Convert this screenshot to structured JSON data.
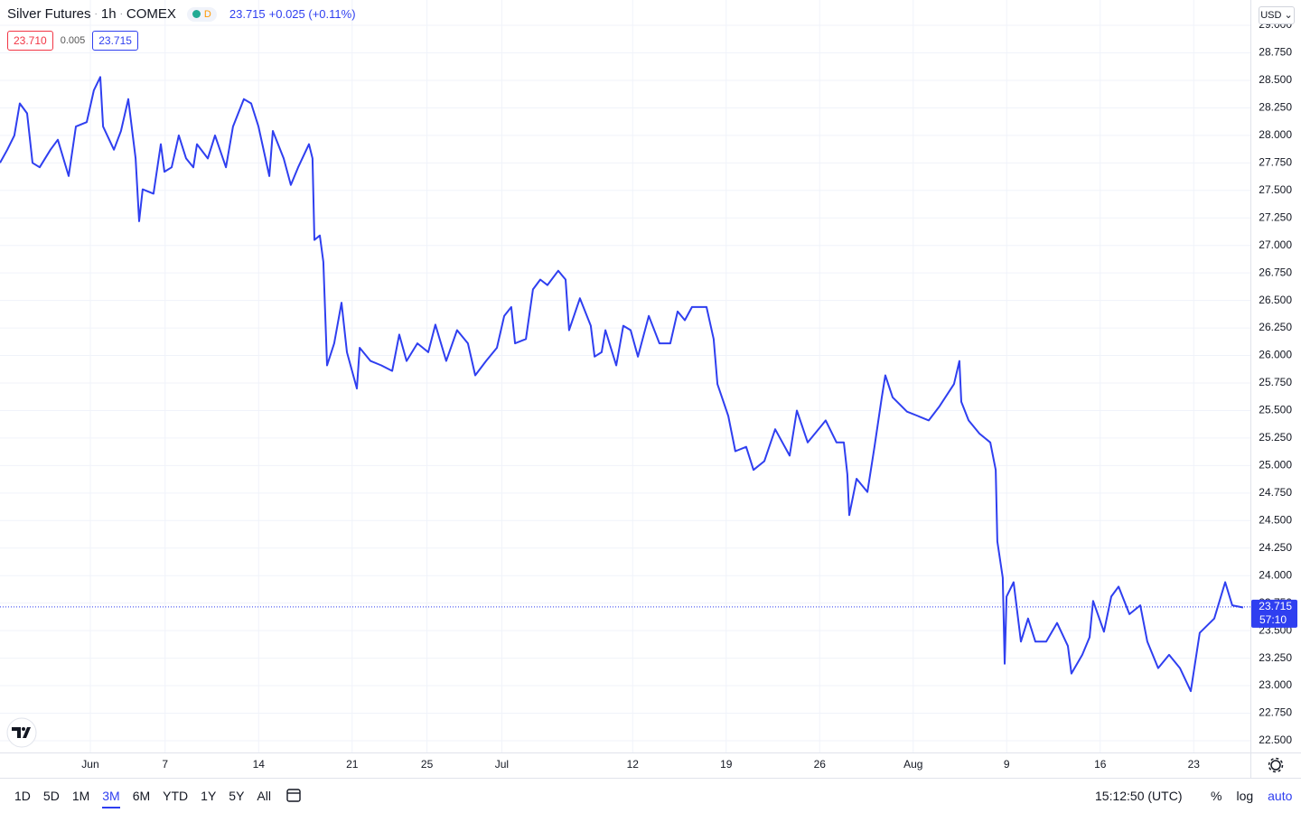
{
  "header": {
    "interval": "1h",
    "exchange": "COMEX",
    "badge": "D",
    "change": "+0.025 (+0.11%)",
    "sell": "23.710",
    "spread": "0.005",
    "buy": "23.715",
    "currency": "USD"
  },
  "chart_data": {
    "type": "line",
    "x": [
      -4.83,
      -4.44,
      -4.06,
      -3.77,
      -3.38,
      -3.09,
      -2.71,
      -2.13,
      -1.74,
      -1.16,
      -0.77,
      -0.19,
      0.19,
      0.53,
      0.68,
      1.26,
      1.64,
      2.03,
      2.42,
      2.61,
      2.8,
      3.38,
      3.77,
      3.96,
      4.35,
      4.73,
      5.12,
      5.51,
      5.7,
      6.28,
      6.67,
      7.25,
      7.63,
      8.21,
      8.6,
      8.99,
      9.57,
      9.76,
      10.34,
      10.72,
      11.11,
      11.69,
      11.88,
      11.98,
      12.27,
      12.46,
      12.66,
      13.04,
      13.43,
      13.72,
      14.25,
      14.4,
      14.98,
      15.56,
      16.14,
      16.52,
      16.91,
      17.49,
      18.07,
      18.45,
      19.03,
      19.61,
      20.19,
      20.58,
      21.16,
      21.74,
      22.13,
      22.51,
      22.71,
      23.29,
      23.67,
      24.06,
      24.44,
      25.02,
      25.41,
      25.6,
      26.18,
      26.76,
      26.96,
      27.34,
      27.54,
      28.12,
      28.5,
      28.89,
      29.28,
      29.86,
      30.43,
      31.01,
      31.4,
      31.79,
      32.17,
      32.95,
      33.33,
      33.53,
      34.11,
      34.49,
      35.07,
      35.46,
      36.04,
      36.62,
      37.39,
      37.78,
      38.36,
      39.13,
      39.32,
      39.9,
      40.29,
      40.48,
      40.58,
      40.97,
      41.55,
      41.93,
      42.32,
      42.51,
      42.9,
      43.67,
      44.25,
      44.83,
      45.41,
      46.18,
      46.47,
      46.57,
      46.96,
      47.54,
      48.12,
      48.41,
      48.5,
      48.79,
      48.89,
      48.99,
      49.37,
      49.76,
      50.14,
      50.53,
      51.11,
      51.69,
      52.27,
      52.46,
      53.04,
      53.43,
      53.62,
      54.2,
      54.59,
      54.98,
      55.56,
      56.14,
      56.52,
      57.1,
      57.68,
      58.26,
      58.84,
      59.32,
      60.1,
      60.68,
      61.06,
      61.64
    ],
    "series": [
      {
        "name": "Silver Futures",
        "color": "#2f3ff0",
        "values": [
          27.75,
          27.87,
          28.0,
          28.29,
          28.2,
          27.75,
          27.71,
          27.87,
          27.96,
          27.63,
          28.08,
          28.12,
          28.41,
          28.53,
          28.08,
          27.87,
          28.04,
          28.33,
          27.79,
          27.22,
          27.51,
          27.47,
          27.92,
          27.67,
          27.71,
          28.0,
          27.79,
          27.71,
          27.92,
          27.79,
          28.0,
          27.71,
          28.08,
          28.33,
          28.29,
          28.08,
          27.63,
          28.04,
          27.79,
          27.55,
          27.71,
          27.92,
          27.79,
          27.05,
          27.09,
          26.85,
          25.91,
          26.11,
          26.48,
          26.03,
          25.7,
          26.07,
          25.95,
          25.91,
          25.86,
          26.19,
          25.95,
          26.11,
          26.03,
          26.28,
          25.95,
          26.23,
          26.11,
          25.82,
          25.95,
          26.07,
          26.36,
          26.44,
          26.11,
          26.15,
          26.6,
          26.69,
          26.64,
          26.77,
          26.69,
          26.23,
          26.52,
          26.27,
          25.99,
          26.03,
          26.23,
          25.91,
          26.27,
          26.23,
          25.99,
          26.36,
          26.11,
          26.11,
          26.4,
          26.32,
          26.44,
          26.44,
          26.15,
          25.74,
          25.45,
          25.13,
          25.17,
          24.96,
          25.04,
          25.33,
          25.09,
          25.5,
          25.21,
          25.37,
          25.41,
          25.21,
          25.21,
          24.92,
          24.55,
          24.88,
          24.76,
          25.17,
          25.62,
          25.82,
          25.62,
          25.49,
          25.45,
          25.41,
          25.54,
          25.74,
          25.95,
          25.58,
          25.41,
          25.29,
          25.21,
          24.96,
          24.31,
          23.98,
          23.2,
          23.81,
          23.94,
          23.4,
          23.61,
          23.4,
          23.4,
          23.57,
          23.36,
          23.11,
          23.28,
          23.44,
          23.77,
          23.49,
          23.81,
          23.9,
          23.65,
          23.73,
          23.4,
          23.16,
          23.28,
          23.16,
          22.95,
          23.48,
          23.61,
          23.94,
          23.73,
          23.71
        ]
      }
    ],
    "xlim": [
      -4.83,
      62.03
    ],
    "xticks": [
      {
        "value": 0,
        "label": "Jun"
      },
      {
        "value": 4,
        "label": "7"
      },
      {
        "value": 9,
        "label": "14"
      },
      {
        "value": 14,
        "label": "21"
      },
      {
        "value": 18,
        "label": "25"
      },
      {
        "value": 22,
        "label": "Jul"
      },
      {
        "value": 29,
        "label": "12"
      },
      {
        "value": 34,
        "label": "19"
      },
      {
        "value": 39,
        "label": "26"
      },
      {
        "value": 44,
        "label": "Aug"
      },
      {
        "value": 49,
        "label": "9"
      },
      {
        "value": 54,
        "label": "16"
      },
      {
        "value": 59,
        "label": "23"
      }
    ],
    "ylim": [
      22.393,
      29.23
    ],
    "yticks": [
      {
        "value": 22.5,
        "label": "22.500"
      },
      {
        "value": 22.75,
        "label": "22.750"
      },
      {
        "value": 23,
        "label": "23.000"
      },
      {
        "value": 23.25,
        "label": "23.250"
      },
      {
        "value": 23.5,
        "label": "23.500"
      },
      {
        "value": 23.75,
        "label": "23.750"
      },
      {
        "value": 24,
        "label": "24.000"
      },
      {
        "value": 24.25,
        "label": "24.250"
      },
      {
        "value": 24.5,
        "label": "24.500"
      },
      {
        "value": 24.75,
        "label": "24.750"
      },
      {
        "value": 25,
        "label": "25.000"
      },
      {
        "value": 25.25,
        "label": "25.250"
      },
      {
        "value": 25.5,
        "label": "25.500"
      },
      {
        "value": 25.75,
        "label": "25.750"
      },
      {
        "value": 26,
        "label": "26.000"
      },
      {
        "value": 26.25,
        "label": "26.250"
      },
      {
        "value": 26.5,
        "label": "26.500"
      },
      {
        "value": 26.75,
        "label": "26.750"
      },
      {
        "value": 27,
        "label": "27.000"
      },
      {
        "value": 27.25,
        "label": "27.250"
      },
      {
        "value": 27.5,
        "label": "27.500"
      },
      {
        "value": 27.75,
        "label": "27.750"
      },
      {
        "value": 28,
        "label": "28.000"
      },
      {
        "value": 28.25,
        "label": "28.250"
      },
      {
        "value": 28.5,
        "label": "28.500"
      },
      {
        "value": 28.75,
        "label": "28.750"
      },
      {
        "value": 29,
        "label": "29.000"
      }
    ],
    "grid": true,
    "last_price": 23.715,
    "countdown": "57:10"
  },
  "toolbar": {
    "ranges": [
      "1D",
      "5D",
      "1M",
      "3M",
      "6M",
      "YTD",
      "1Y",
      "5Y",
      "All"
    ],
    "selected": "3M",
    "time": "15:12:50 (UTC)",
    "options": [
      "%",
      "log",
      "auto"
    ]
  }
}
